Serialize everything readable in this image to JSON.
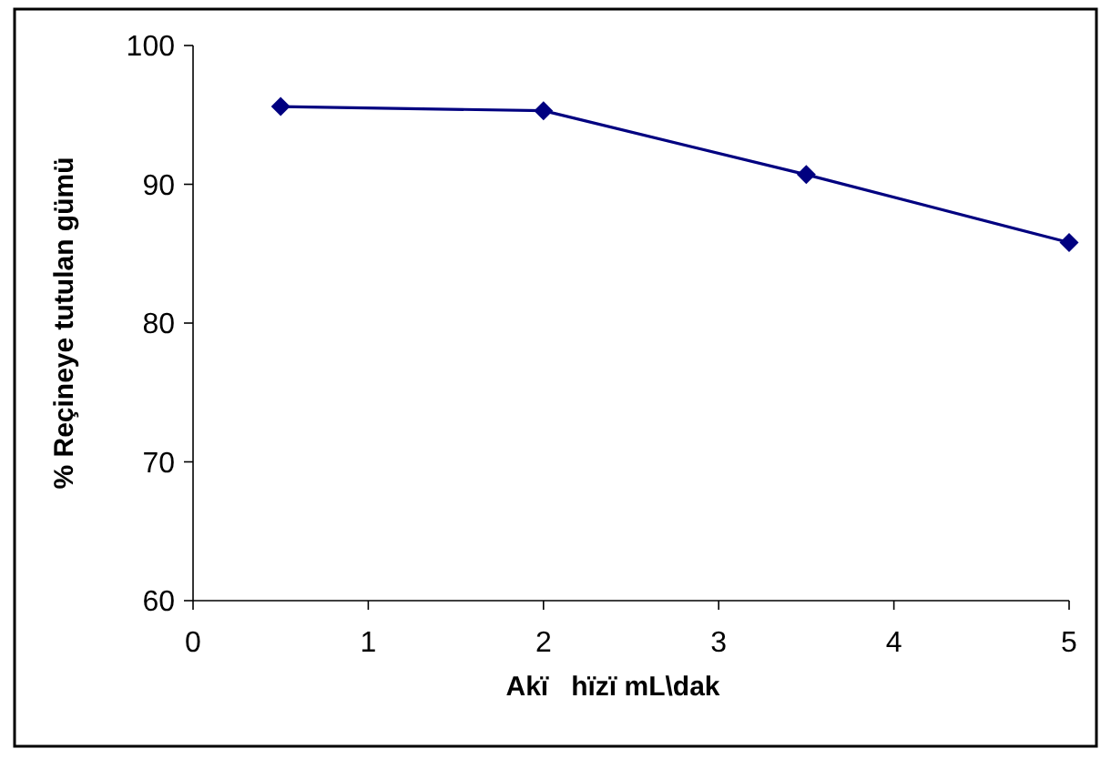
{
  "chart_data": {
    "type": "line",
    "xlabel": "Akï   hïzï mL\\dak",
    "ylabel": "% Reçineye tutulan gümü",
    "x": [
      0.5,
      2,
      3.5,
      5
    ],
    "series": [
      {
        "color": "#000080",
        "values": [
          95.6,
          95.3,
          90.7,
          85.8
        ]
      }
    ],
    "xlim": [
      0,
      5
    ],
    "xticks": [
      0,
      1,
      2,
      3,
      4,
      5
    ],
    "ylim": [
      60,
      100
    ],
    "yticks": [
      60,
      70,
      80,
      90,
      100
    ],
    "marker": "diamond",
    "line_style": "solid"
  }
}
